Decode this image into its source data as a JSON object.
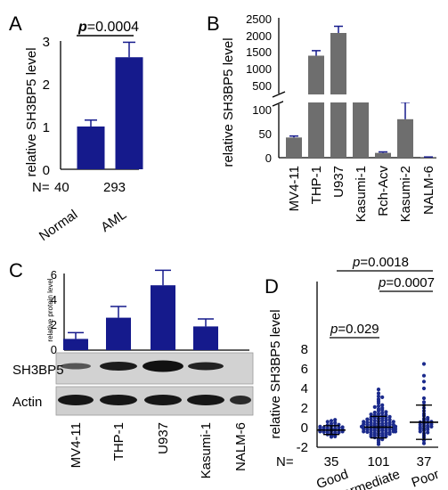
{
  "panels": {
    "A": {
      "letter": "A",
      "ylabel": "relative SH3BP5 level",
      "yticks": [
        "0",
        "1",
        "2",
        "3"
      ],
      "n_prefix": "N=",
      "n_values": [
        "40",
        "293"
      ],
      "pvalue_p": "p",
      "pvalue_rest": "=0.0004",
      "categories": [
        "Normal",
        "AML"
      ]
    },
    "B": {
      "letter": "B",
      "ylabel": "relative SH3BP5 level",
      "upper_ticks": [
        "2500",
        "2000",
        "1500",
        "1000",
        "500"
      ],
      "lower_ticks": [
        "100",
        "50",
        "0"
      ],
      "categories": [
        "MV4-11",
        "THP-1",
        "U937",
        "Kasumi-1",
        "Rch-Acv",
        "Kasumi-2",
        "NALM-6"
      ]
    },
    "C": {
      "letter": "C",
      "ylabel": "relative protein level",
      "yticks": [
        "0",
        "2",
        "4",
        "6"
      ],
      "blot_labels": [
        "SH3BP5",
        "Actin"
      ],
      "categories": [
        "MV4-11",
        "THP-1",
        "U937",
        "Kasumi-1",
        "NALM-6"
      ]
    },
    "D": {
      "letter": "D",
      "ylabel": "relative SH3BP5 level",
      "yticks": [
        "-2",
        "0",
        "2",
        "4",
        "6",
        "8"
      ],
      "n_prefix": "N=",
      "n_values": [
        "35",
        "101",
        "37"
      ],
      "categories": [
        "Good",
        "Intermediate",
        "Poor"
      ],
      "pvalues": [
        {
          "p": "p",
          "rest": "=0.029"
        },
        {
          "p": "p",
          "rest": "=0.0007"
        },
        {
          "p": "p",
          "rest": "=0.0018"
        }
      ]
    }
  },
  "colors": {
    "bar_navy": "#151A8C",
    "bar_gray": "#6E6E6E",
    "dot_navy": "#1B2A8C"
  },
  "chart_data": [
    {
      "panel": "A",
      "type": "bar",
      "categories": [
        "Normal",
        "AML"
      ],
      "values": [
        1.0,
        2.62
      ],
      "errors": [
        0.15,
        0.35
      ],
      "n": [
        40,
        293
      ],
      "ylabel": "relative SH3BP5 level",
      "ylim": [
        0,
        3
      ],
      "annotation": "p=0.0004"
    },
    {
      "panel": "B",
      "type": "bar",
      "categories": [
        "MV4-11",
        "THP-1",
        "U937",
        "Kasumi-1",
        "Rch-Acv",
        "Kasumi-2",
        "NALM-6"
      ],
      "values": [
        42,
        1500,
        2180,
        220,
        10,
        80,
        1
      ],
      "errors": [
        3,
        150,
        200,
        20,
        2,
        25,
        0.5
      ],
      "ylabel": "relative SH3BP5 level",
      "axis_break": {
        "lower": [
          0,
          100
        ],
        "upper": [
          300,
          2500
        ]
      }
    },
    {
      "panel": "C",
      "type": "bar",
      "categories": [
        "MV4-11",
        "THP-1",
        "U937",
        "Kasumi-1",
        "NALM-6"
      ],
      "values": [
        0.9,
        2.6,
        5.2,
        1.9,
        0
      ],
      "errors": [
        0.5,
        0.9,
        1.2,
        0.6,
        0
      ],
      "ylabel": "relative protein level",
      "ylim": [
        0,
        6
      ]
    },
    {
      "panel": "D",
      "type": "scatter",
      "categories": [
        "Good",
        "Intermediate",
        "Poor"
      ],
      "n": [
        35,
        101,
        37
      ],
      "mean": [
        -0.25,
        0.05,
        0.55
      ],
      "sd": [
        0.45,
        1.1,
        1.75
      ],
      "ylabel": "relative SH3BP5 level",
      "ylim": [
        -2,
        8
      ],
      "comparisons": [
        {
          "groups": [
            "Good",
            "Intermediate"
          ],
          "p": "0.029"
        },
        {
          "groups": [
            "Intermediate",
            "Poor"
          ],
          "p": "0.0007"
        },
        {
          "groups": [
            "Good",
            "Poor"
          ],
          "p": "0.0018"
        }
      ],
      "points": [
        [
          -0.95,
          -0.9,
          -0.8,
          -0.75,
          -0.7,
          -0.6,
          -0.55,
          -0.5,
          -0.5,
          -0.45,
          -0.4,
          -0.4,
          -0.35,
          -0.3,
          -0.3,
          -0.25,
          -0.2,
          -0.2,
          -0.15,
          -0.1,
          -0.1,
          -0.05,
          0.0,
          0.0,
          0.05,
          0.1,
          0.15,
          0.2,
          0.25,
          0.3,
          0.4,
          0.5,
          0.6,
          0.7,
          0.8
        ],
        [
          -1.7,
          -1.5,
          -1.3,
          -1.2,
          -1.1,
          -1.0,
          -1.0,
          -0.9,
          -0.9,
          -0.8,
          -0.8,
          -0.75,
          -0.7,
          -0.7,
          -0.65,
          -0.6,
          -0.6,
          -0.55,
          -0.5,
          -0.5,
          -0.5,
          -0.45,
          -0.4,
          -0.4,
          -0.4,
          -0.35,
          -0.3,
          -0.3,
          -0.3,
          -0.25,
          -0.2,
          -0.2,
          -0.2,
          -0.15,
          -0.1,
          -0.1,
          -0.1,
          -0.05,
          0.0,
          0.0,
          0.0,
          0.0,
          0.05,
          0.1,
          0.1,
          0.1,
          0.15,
          0.2,
          0.2,
          0.2,
          0.25,
          0.3,
          0.3,
          0.3,
          0.35,
          0.4,
          0.4,
          0.4,
          0.45,
          0.5,
          0.5,
          0.55,
          0.6,
          0.6,
          0.65,
          0.7,
          0.7,
          0.75,
          0.8,
          0.8,
          0.85,
          0.9,
          0.95,
          1.0,
          1.0,
          1.05,
          1.1,
          1.15,
          1.2,
          1.25,
          1.3,
          1.35,
          1.4,
          1.5,
          1.55,
          1.6,
          1.7,
          1.8,
          1.9,
          2.0,
          2.1,
          2.2,
          2.3,
          2.5,
          2.7,
          2.9,
          3.1,
          3.2,
          3.5,
          3.9,
          -0.15
        ],
        [
          -1.6,
          -1.3,
          -1.0,
          -0.8,
          -0.6,
          -0.5,
          -0.4,
          -0.3,
          -0.2,
          -0.15,
          -0.1,
          0.0,
          0.05,
          0.1,
          0.15,
          0.2,
          0.3,
          0.35,
          0.4,
          0.5,
          0.55,
          0.6,
          0.7,
          0.8,
          0.9,
          1.0,
          1.2,
          1.4,
          1.7,
          2.0,
          2.3,
          2.6,
          3.0,
          4.0,
          4.7,
          5.3,
          6.5
        ]
      ]
    }
  ]
}
